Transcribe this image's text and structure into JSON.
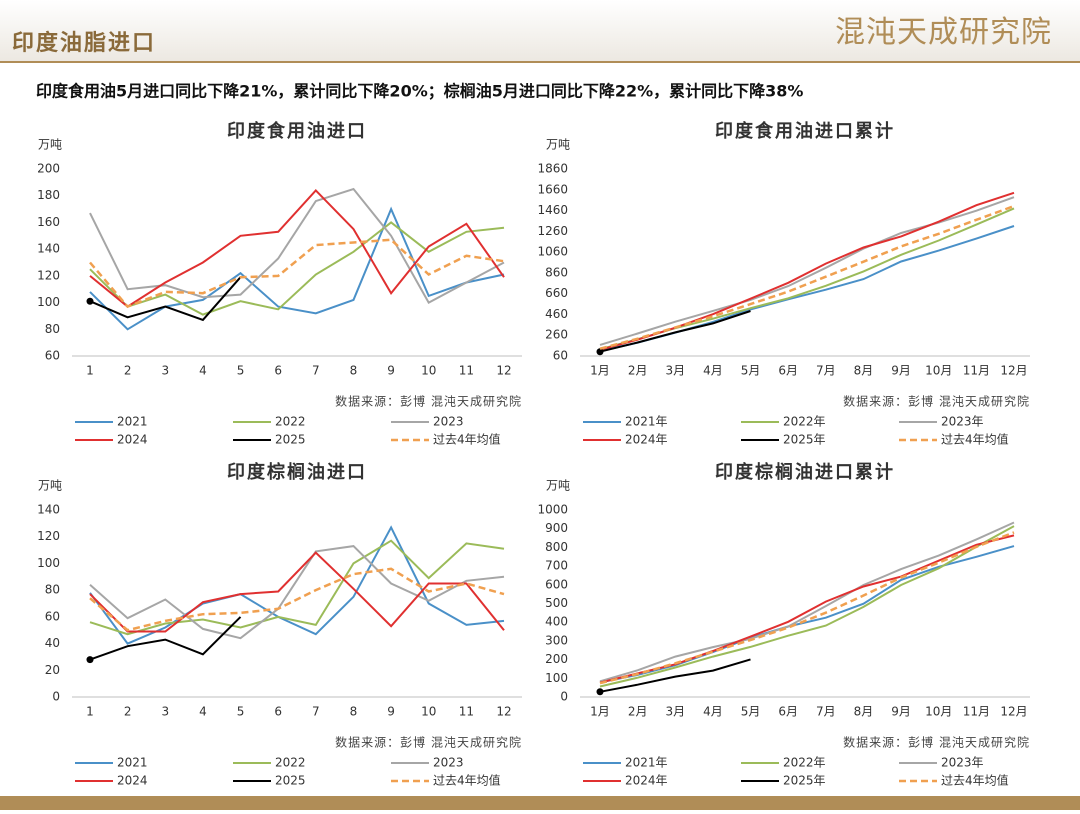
{
  "header": {
    "title": "印度油脂进口",
    "logo": "混沌天成研究院"
  },
  "subtitle": "印度食用油5月进口同比下降21%，累计同比下降20%；棕榈油5月进口同比下降22%，累计同比下降38%",
  "chart_data": [
    {
      "type": "line",
      "title": "印度食用油进口",
      "ylabel": "万吨",
      "source": "数据来源：彭博  混沌天成研究院",
      "categories": [
        "1",
        "2",
        "3",
        "4",
        "5",
        "6",
        "7",
        "8",
        "9",
        "10",
        "11",
        "12"
      ],
      "ylim": [
        60,
        200
      ],
      "yticks": [
        60,
        80,
        100,
        120,
        140,
        160,
        180,
        200
      ],
      "series": [
        {
          "name": "2021",
          "color": "#4a90c8",
          "values": [
            108,
            80,
            97,
            102,
            122,
            97,
            92,
            102,
            170,
            105,
            115,
            121
          ]
        },
        {
          "name": "2022",
          "color": "#9bbb59",
          "values": [
            125,
            97,
            106,
            91,
            101,
            95,
            121,
            138,
            160,
            138,
            153,
            156
          ]
        },
        {
          "name": "2023",
          "color": "#a6a6a6",
          "values": [
            167,
            110,
            113,
            104,
            106,
            133,
            176,
            185,
            150,
            100,
            115,
            130
          ]
        },
        {
          "name": "2024",
          "color": "#e03030",
          "values": [
            120,
            97,
            115,
            130,
            150,
            153,
            184,
            155,
            107,
            142,
            159,
            119
          ]
        },
        {
          "name": "2025",
          "color": "#000000",
          "values": [
            101,
            89,
            97,
            87,
            119,
            null,
            null,
            null,
            null,
            null,
            null,
            null
          ]
        },
        {
          "name": "过去4年均值",
          "color": "#f0a050",
          "dashed": true,
          "values": [
            130,
            97,
            108,
            107,
            119,
            120,
            143,
            145,
            147,
            121,
            135,
            131
          ]
        }
      ]
    },
    {
      "type": "line",
      "title": "印度食用油进口累计",
      "ylabel": "万吨",
      "source": "数据来源：彭博  混沌天成研究院",
      "categories": [
        "1月",
        "2月",
        "3月",
        "4月",
        "5月",
        "6月",
        "7月",
        "8月",
        "9月",
        "10月",
        "11月",
        "12月"
      ],
      "ylim": [
        60,
        1860
      ],
      "yticks": [
        60,
        260,
        460,
        660,
        860,
        1060,
        1260,
        1460,
        1660,
        1860
      ],
      "series": [
        {
          "name": "2021年",
          "color": "#4a90c8",
          "values": [
            108,
            188,
            285,
            387,
            509,
            606,
            698,
            800,
            970,
            1075,
            1190,
            1311
          ]
        },
        {
          "name": "2022年",
          "color": "#9bbb59",
          "values": [
            125,
            222,
            328,
            419,
            520,
            615,
            736,
            874,
            1034,
            1172,
            1325,
            1481
          ]
        },
        {
          "name": "2023年",
          "color": "#a6a6a6",
          "values": [
            167,
            277,
            390,
            494,
            600,
            733,
            909,
            1094,
            1244,
            1344,
            1459,
            1589
          ]
        },
        {
          "name": "2024年",
          "color": "#e03030",
          "values": [
            120,
            217,
            332,
            462,
            612,
            765,
            949,
            1104,
            1211,
            1353,
            1512,
            1631
          ]
        },
        {
          "name": "2025年",
          "color": "#000000",
          "values": [
            101,
            190,
            287,
            374,
            493,
            null,
            null,
            null,
            null,
            null,
            null,
            null
          ]
        },
        {
          "name": "过去4年均值",
          "color": "#f0a050",
          "dashed": true,
          "values": [
            130,
            227,
            335,
            442,
            560,
            680,
            823,
            968,
            1115,
            1236,
            1371,
            1503
          ]
        }
      ]
    },
    {
      "type": "line",
      "title": "印度棕榈油进口",
      "ylabel": "万吨",
      "source": "数据来源：彭博  混沌天成研究院",
      "categories": [
        "1",
        "2",
        "3",
        "4",
        "5",
        "6",
        "7",
        "8",
        "9",
        "10",
        "11",
        "12"
      ],
      "ylim": [
        0,
        140
      ],
      "yticks": [
        0,
        20,
        40,
        60,
        80,
        100,
        120,
        140
      ],
      "series": [
        {
          "name": "2021",
          "color": "#4a90c8",
          "values": [
            78,
            40,
            52,
            70,
            77,
            60,
            47,
            75,
            127,
            70,
            54,
            57
          ]
        },
        {
          "name": "2022",
          "color": "#9bbb59",
          "values": [
            56,
            47,
            55,
            58,
            52,
            60,
            54,
            100,
            117,
            89,
            115,
            111
          ]
        },
        {
          "name": "2023",
          "color": "#a6a6a6",
          "values": [
            84,
            59,
            73,
            51,
            44,
            66,
            109,
            113,
            85,
            72,
            87,
            90
          ]
        },
        {
          "name": "2024",
          "color": "#e03030",
          "values": [
            77,
            49,
            49,
            71,
            77,
            79,
            108,
            81,
            53,
            85,
            85,
            50
          ]
        },
        {
          "name": "2025",
          "color": "#000000",
          "values": [
            28,
            38,
            43,
            32,
            60,
            null,
            null,
            null,
            null,
            null,
            null,
            null
          ]
        },
        {
          "name": "过去4年均值",
          "color": "#f0a050",
          "dashed": true,
          "values": [
            74,
            50,
            57,
            62,
            63,
            66,
            80,
            92,
            96,
            79,
            85,
            77
          ]
        }
      ]
    },
    {
      "type": "line",
      "title": "印度棕榈油进口累计",
      "ylabel": "万吨",
      "source": "数据来源：彭博  混沌天成研究院",
      "categories": [
        "1月",
        "2月",
        "3月",
        "4月",
        "5月",
        "6月",
        "7月",
        "8月",
        "9月",
        "10月",
        "11月",
        "12月"
      ],
      "ylim": [
        0,
        1000
      ],
      "yticks": [
        0,
        100,
        200,
        300,
        400,
        500,
        600,
        700,
        800,
        900,
        1000
      ],
      "series": [
        {
          "name": "2021年",
          "color": "#4a90c8",
          "values": [
            78,
            118,
            170,
            240,
            317,
            377,
            424,
            499,
            626,
            696,
            750,
            807
          ]
        },
        {
          "name": "2022年",
          "color": "#9bbb59",
          "values": [
            56,
            103,
            158,
            216,
            268,
            328,
            382,
            482,
            599,
            688,
            803,
            914
          ]
        },
        {
          "name": "2023年",
          "color": "#a6a6a6",
          "values": [
            84,
            143,
            216,
            267,
            311,
            377,
            486,
            599,
            684,
            756,
            843,
            933
          ]
        },
        {
          "name": "2024年",
          "color": "#e03030",
          "values": [
            77,
            126,
            175,
            246,
            323,
            402,
            510,
            591,
            644,
            729,
            814,
            864
          ]
        },
        {
          "name": "2025年",
          "color": "#000000",
          "values": [
            28,
            66,
            109,
            141,
            201,
            null,
            null,
            null,
            null,
            null,
            null,
            null
          ]
        },
        {
          "name": "过去4年均值",
          "color": "#f0a050",
          "dashed": true,
          "values": [
            74,
            123,
            180,
            242,
            305,
            371,
            451,
            543,
            639,
            718,
            803,
            880
          ]
        }
      ]
    }
  ]
}
